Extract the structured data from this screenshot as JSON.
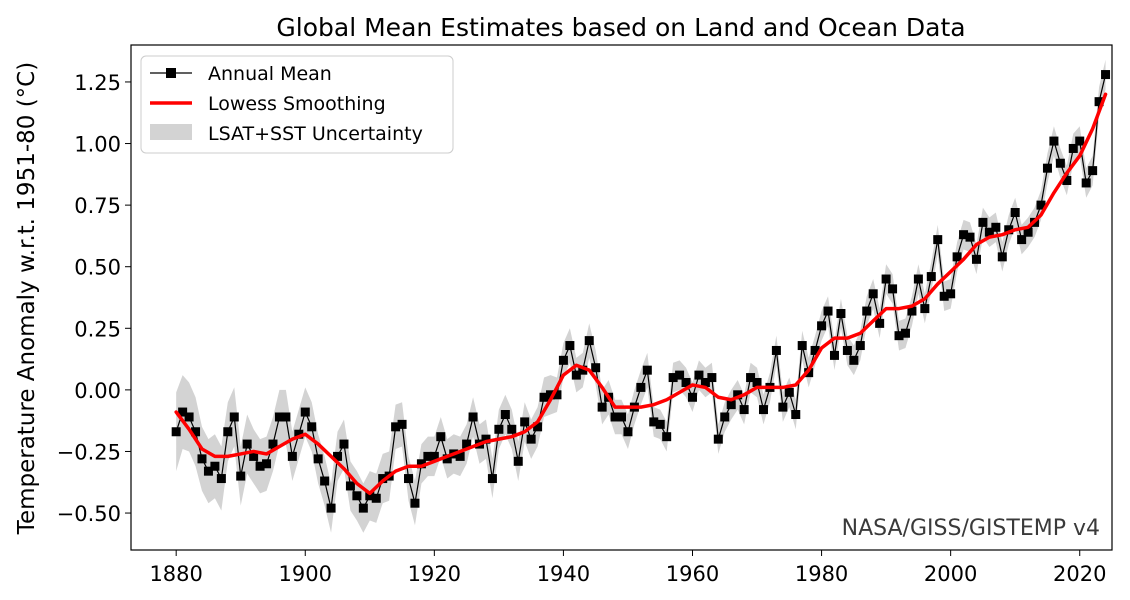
{
  "chart_data": {
    "type": "line",
    "title": "Global Mean Estimates based on Land and Ocean Data",
    "xlabel": "",
    "ylabel": "Temperature Anomaly w.r.t. 1951-80 (°C)",
    "xlim": [
      1873,
      2025
    ],
    "ylim": [
      -0.65,
      1.4
    ],
    "xticks": [
      1880,
      1900,
      1920,
      1940,
      1960,
      1980,
      2000,
      2020
    ],
    "yticks": [
      -0.5,
      -0.25,
      0.0,
      0.25,
      0.5,
      0.75,
      1.0,
      1.25
    ],
    "yticklabels": [
      "−0.50",
      "−0.25",
      "0.00",
      "0.25",
      "0.50",
      "0.75",
      "1.00",
      "1.25"
    ],
    "grid": false,
    "legend_position": "top-left",
    "watermark": "NASA/GISS/GISTEMP v4",
    "legend": [
      {
        "label": "Annual Mean",
        "kind": "line-marker",
        "color": "#000000"
      },
      {
        "label": "Lowess Smoothing",
        "kind": "line",
        "color": "#ff0000"
      },
      {
        "label": "LSAT+SST Uncertainty",
        "kind": "band",
        "color": "#d3d3d3"
      }
    ],
    "x": [
      1880,
      1881,
      1882,
      1883,
      1884,
      1885,
      1886,
      1887,
      1888,
      1889,
      1890,
      1891,
      1892,
      1893,
      1894,
      1895,
      1896,
      1897,
      1898,
      1899,
      1900,
      1901,
      1902,
      1903,
      1904,
      1905,
      1906,
      1907,
      1908,
      1909,
      1910,
      1911,
      1912,
      1913,
      1914,
      1915,
      1916,
      1917,
      1918,
      1919,
      1920,
      1921,
      1922,
      1923,
      1924,
      1925,
      1926,
      1927,
      1928,
      1929,
      1930,
      1931,
      1932,
      1933,
      1934,
      1935,
      1936,
      1937,
      1938,
      1939,
      1940,
      1941,
      1942,
      1943,
      1944,
      1945,
      1946,
      1947,
      1948,
      1949,
      1950,
      1951,
      1952,
      1953,
      1954,
      1955,
      1956,
      1957,
      1958,
      1959,
      1960,
      1961,
      1962,
      1963,
      1964,
      1965,
      1966,
      1967,
      1968,
      1969,
      1970,
      1971,
      1972,
      1973,
      1974,
      1975,
      1976,
      1977,
      1978,
      1979,
      1980,
      1981,
      1982,
      1983,
      1984,
      1985,
      1986,
      1987,
      1988,
      1989,
      1990,
      1991,
      1992,
      1993,
      1994,
      1995,
      1996,
      1997,
      1998,
      1999,
      2000,
      2001,
      2002,
      2003,
      2004,
      2005,
      2006,
      2007,
      2008,
      2009,
      2010,
      2011,
      2012,
      2013,
      2014,
      2015,
      2016,
      2017,
      2018,
      2019,
      2020,
      2021,
      2022,
      2023,
      2024
    ],
    "series": [
      {
        "name": "Annual Mean",
        "color": "#000000",
        "values": [
          -0.17,
          -0.09,
          -0.11,
          -0.17,
          -0.28,
          -0.33,
          -0.31,
          -0.36,
          -0.17,
          -0.11,
          -0.35,
          -0.22,
          -0.27,
          -0.31,
          -0.3,
          -0.22,
          -0.11,
          -0.11,
          -0.27,
          -0.18,
          -0.09,
          -0.15,
          -0.28,
          -0.37,
          -0.48,
          -0.27,
          -0.22,
          -0.39,
          -0.43,
          -0.48,
          -0.43,
          -0.44,
          -0.36,
          -0.35,
          -0.15,
          -0.14,
          -0.36,
          -0.46,
          -0.3,
          -0.27,
          -0.27,
          -0.19,
          -0.28,
          -0.26,
          -0.27,
          -0.22,
          -0.11,
          -0.22,
          -0.2,
          -0.36,
          -0.16,
          -0.1,
          -0.16,
          -0.29,
          -0.13,
          -0.2,
          -0.15,
          -0.03,
          -0.02,
          -0.02,
          0.12,
          0.18,
          0.06,
          0.08,
          0.2,
          0.09,
          -0.07,
          -0.03,
          -0.11,
          -0.11,
          -0.17,
          -0.07,
          0.01,
          0.08,
          -0.13,
          -0.14,
          -0.19,
          0.05,
          0.06,
          0.03,
          -0.03,
          0.06,
          0.03,
          0.05,
          -0.2,
          -0.11,
          -0.06,
          -0.02,
          -0.08,
          0.05,
          0.03,
          -0.08,
          0.01,
          0.16,
          -0.07,
          -0.01,
          -0.1,
          0.18,
          0.07,
          0.16,
          0.26,
          0.32,
          0.14,
          0.31,
          0.16,
          0.12,
          0.18,
          0.32,
          0.39,
          0.27,
          0.45,
          0.41,
          0.22,
          0.23,
          0.32,
          0.45,
          0.33,
          0.46,
          0.61,
          0.38,
          0.39,
          0.54,
          0.63,
          0.62,
          0.53,
          0.68,
          0.64,
          0.66,
          0.54,
          0.65,
          0.72,
          0.61,
          0.64,
          0.68,
          0.75,
          0.9,
          1.01,
          0.92,
          0.85,
          0.98,
          1.01,
          0.84,
          0.89,
          1.17,
          1.28
        ]
      },
      {
        "name": "Lowess Smoothing",
        "color": "#ff0000",
        "x": [
          1880,
          1882,
          1884,
          1886,
          1888,
          1890,
          1892,
          1894,
          1896,
          1898,
          1900,
          1902,
          1904,
          1906,
          1908,
          1910,
          1912,
          1914,
          1916,
          1918,
          1920,
          1922,
          1924,
          1926,
          1928,
          1930,
          1932,
          1934,
          1936,
          1938,
          1940,
          1942,
          1944,
          1946,
          1948,
          1950,
          1952,
          1954,
          1956,
          1958,
          1960,
          1962,
          1964,
          1966,
          1968,
          1970,
          1972,
          1974,
          1976,
          1978,
          1980,
          1982,
          1984,
          1986,
          1988,
          1990,
          1992,
          1994,
          1996,
          1998,
          2000,
          2002,
          2004,
          2006,
          2008,
          2010,
          2012,
          2014,
          2016,
          2018,
          2020,
          2022,
          2024
        ],
        "values": [
          -0.09,
          -0.16,
          -0.24,
          -0.27,
          -0.27,
          -0.26,
          -0.25,
          -0.26,
          -0.23,
          -0.2,
          -0.18,
          -0.22,
          -0.27,
          -0.32,
          -0.38,
          -0.42,
          -0.37,
          -0.33,
          -0.31,
          -0.31,
          -0.29,
          -0.27,
          -0.25,
          -0.23,
          -0.21,
          -0.2,
          -0.19,
          -0.17,
          -0.13,
          -0.04,
          0.06,
          0.1,
          0.08,
          0.01,
          -0.07,
          -0.07,
          -0.07,
          -0.06,
          -0.04,
          -0.01,
          0.02,
          0.01,
          -0.03,
          -0.04,
          -0.02,
          0.01,
          0.01,
          0.01,
          0.02,
          0.08,
          0.17,
          0.21,
          0.21,
          0.23,
          0.28,
          0.33,
          0.33,
          0.34,
          0.37,
          0.43,
          0.48,
          0.53,
          0.59,
          0.62,
          0.63,
          0.65,
          0.66,
          0.71,
          0.8,
          0.88,
          0.95,
          1.06,
          1.2
        ]
      },
      {
        "name": "LSAT+SST Uncertainty",
        "color": "#d3d3d3",
        "half_width": [
          0.16,
          0.15,
          0.14,
          0.14,
          0.13,
          0.13,
          0.13,
          0.13,
          0.12,
          0.12,
          0.12,
          0.12,
          0.11,
          0.11,
          0.11,
          0.11,
          0.11,
          0.11,
          0.1,
          0.1,
          0.1,
          0.1,
          0.1,
          0.1,
          0.1,
          0.1,
          0.1,
          0.1,
          0.1,
          0.1,
          0.1,
          0.1,
          0.1,
          0.1,
          0.09,
          0.09,
          0.09,
          0.09,
          0.08,
          0.08,
          0.08,
          0.08,
          0.08,
          0.08,
          0.08,
          0.08,
          0.08,
          0.08,
          0.08,
          0.08,
          0.08,
          0.08,
          0.08,
          0.08,
          0.08,
          0.08,
          0.08,
          0.08,
          0.08,
          0.07,
          0.07,
          0.07,
          0.07,
          0.07,
          0.07,
          0.07,
          0.07,
          0.07,
          0.07,
          0.07,
          0.07,
          0.07,
          0.07,
          0.07,
          0.06,
          0.06,
          0.06,
          0.06,
          0.06,
          0.06,
          0.06,
          0.06,
          0.06,
          0.06,
          0.06,
          0.06,
          0.06,
          0.06,
          0.06,
          0.06,
          0.06,
          0.06,
          0.06,
          0.06,
          0.06,
          0.06,
          0.06,
          0.06,
          0.06,
          0.06,
          0.06,
          0.06,
          0.06,
          0.06,
          0.06,
          0.06,
          0.06,
          0.06,
          0.06,
          0.06,
          0.06,
          0.06,
          0.06,
          0.06,
          0.06,
          0.06,
          0.06,
          0.06,
          0.06,
          0.06,
          0.06,
          0.06,
          0.06,
          0.06,
          0.06,
          0.06,
          0.06,
          0.06,
          0.06,
          0.06,
          0.06,
          0.06,
          0.06,
          0.06,
          0.06,
          0.06,
          0.06,
          0.06,
          0.06,
          0.06,
          0.06,
          0.06,
          0.06,
          0.06,
          0.06
        ]
      }
    ]
  }
}
